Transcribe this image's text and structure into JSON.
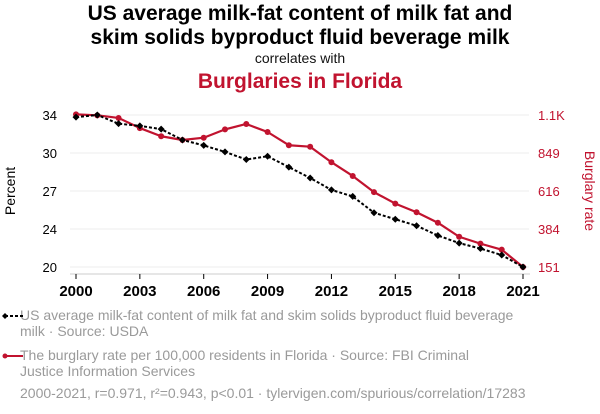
{
  "header": {
    "title_line1": "US average milk-fat content of milk fat and",
    "title_line2": "skim solids byproduct fluid beverage milk",
    "subtitle": "correlates with",
    "title2": "Burglaries in Florida"
  },
  "colors": {
    "series1": "#000000",
    "series2": "#c1132f",
    "grid": "#eeeeee",
    "axis": "#cccccc",
    "legend_text": "#9a9a9a"
  },
  "chart_data": {
    "type": "line",
    "title": "US average milk-fat content of milk fat and skim solids byproduct fluid beverage milk correlates with Burglaries in Florida",
    "x": [
      2000,
      2001,
      2002,
      2003,
      2004,
      2005,
      2006,
      2007,
      2008,
      2009,
      2010,
      2011,
      2012,
      2013,
      2014,
      2015,
      2016,
      2017,
      2018,
      2019,
      2020,
      2021
    ],
    "xlabel": "",
    "xlim": [
      2000,
      2021
    ],
    "xticks": [
      2000,
      2003,
      2006,
      2009,
      2012,
      2015,
      2018,
      2021
    ],
    "xtick_labels": [
      "2000",
      "2003",
      "2006",
      "2009",
      "2012",
      "2015",
      "2018",
      "2021"
    ],
    "left_axis": {
      "label": "Percent",
      "ylim": [
        20.0,
        34.0
      ],
      "ticks": [
        20.0,
        23.5,
        27.0,
        30.5,
        34.0
      ],
      "tick_labels": [
        "20",
        "24",
        "27",
        "30",
        "34"
      ]
    },
    "right_axis": {
      "label": "Burglary rate",
      "ylim": [
        151,
        1081
      ],
      "ticks": [
        151,
        383.5,
        616,
        848.5,
        1081
      ],
      "tick_labels": [
        "151",
        "384",
        "616",
        "849",
        "1.1K"
      ]
    },
    "grid": true,
    "legend_position": "bottom",
    "series": [
      {
        "name": "US average milk-fat content of milk fat and skim solids byproduct fluid beverage milk · Source: USDA",
        "axis": "left",
        "style": "dashed",
        "marker": "diamond",
        "color": "#000000",
        "values": [
          33.8,
          34.0,
          33.2,
          33.0,
          32.7,
          31.7,
          31.2,
          30.6,
          29.9,
          30.2,
          29.2,
          28.2,
          27.1,
          26.5,
          25.0,
          24.4,
          23.8,
          22.9,
          22.2,
          21.7,
          21.1,
          20.0
        ]
      },
      {
        "name": "The burglary rate per 100,000 residents in Florida · Source: FBI Criminal Justice Information Services",
        "axis": "right",
        "style": "solid",
        "marker": "circle",
        "color": "#c1132f",
        "values": [
          1085,
          1079,
          1063,
          1001,
          951,
          928,
          942,
          993,
          1026,
          977,
          896,
          887,
          792,
          708,
          609,
          539,
          486,
          422,
          336,
          294,
          257,
          151
        ]
      }
    ],
    "annotation": "2000-2021, r=0.971, r²=0.943, p<0.01 · tylervigen.com/spurious/correlation/17283"
  },
  "legend": {
    "items": [
      {
        "line1": "US average milk-fat content of milk fat and skim solids byproduct fluid beverage",
        "line2": "milk · Source: USDA"
      },
      {
        "line1": "The burglary rate per 100,000 residents in Florida · Source: FBI Criminal",
        "line2": "Justice Information Services"
      }
    ]
  },
  "footer": {
    "stats": "2000-2021, r=0.971, r²=0.943, p<0.01 · tylervigen.com/spurious/correlation/17283"
  }
}
